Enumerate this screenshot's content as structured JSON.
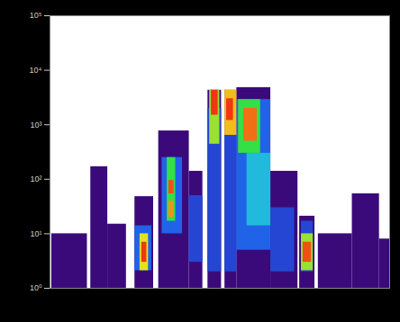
{
  "chart_data": {
    "type": "heatmap",
    "xlim": [
      0,
      100
    ],
    "ylim": [
      1,
      100000
    ],
    "yticks": [
      {
        "value": 1,
        "label": "10⁰"
      },
      {
        "value": 10,
        "label": "10¹"
      },
      {
        "value": 100,
        "label": "10²"
      },
      {
        "value": 1000,
        "label": "10³"
      },
      {
        "value": 10000,
        "label": "10⁴"
      },
      {
        "value": 100000,
        "label": "10⁵"
      }
    ],
    "log": "y",
    "tick_labels": "y",
    "cells": [
      {
        "x0": 0.5,
        "x1": 11,
        "y0": 1,
        "y1": 10,
        "count": 1
      },
      {
        "x0": 12,
        "x1": 17,
        "y0": 1,
        "y1": 170,
        "count": 1
      },
      {
        "x0": 17,
        "x1": 22.5,
        "y0": 1,
        "y1": 15,
        "count": 1
      },
      {
        "x0": 25,
        "x1": 30.5,
        "y0": 1,
        "y1": 48,
        "count": 1
      },
      {
        "x0": 32,
        "x1": 41,
        "y0": 1,
        "y1": 770,
        "count": 1
      },
      {
        "x0": 41,
        "x1": 45,
        "y0": 1,
        "y1": 140,
        "count": 1
      },
      {
        "x0": 46.5,
        "x1": 50.5,
        "y0": 1,
        "y1": 4300,
        "count": 1
      },
      {
        "x0": 51.5,
        "x1": 55,
        "y0": 1,
        "y1": 4300,
        "count": 1
      },
      {
        "x0": 55,
        "x1": 65,
        "y0": 1,
        "y1": 4800,
        "count": 1
      },
      {
        "x0": 65,
        "x1": 73,
        "y0": 1,
        "y1": 140,
        "count": 1
      },
      {
        "x0": 73.5,
        "x1": 78,
        "y0": 1,
        "y1": 21,
        "count": 1
      },
      {
        "x0": 79,
        "x1": 89,
        "y0": 1,
        "y1": 10,
        "count": 1
      },
      {
        "x0": 89,
        "x1": 97,
        "y0": 1,
        "y1": 54,
        "count": 1
      },
      {
        "x0": 97,
        "x1": 100,
        "y0": 1,
        "y1": 8,
        "count": 1
      },
      {
        "x0": 25,
        "x1": 30,
        "y0": 2.1,
        "y1": 14,
        "count": 4
      },
      {
        "x0": 33,
        "x1": 39,
        "y0": 10,
        "y1": 250,
        "count": 4
      },
      {
        "x0": 41,
        "x1": 45,
        "y0": 3,
        "y1": 50,
        "count": 3
      },
      {
        "x0": 46.5,
        "x1": 50.5,
        "y0": 2,
        "y1": 2000,
        "count": 3
      },
      {
        "x0": 51.5,
        "x1": 55,
        "y0": 2,
        "y1": 2000,
        "count": 3
      },
      {
        "x0": 55,
        "x1": 65,
        "y0": 5,
        "y1": 2900,
        "count": 4
      },
      {
        "x0": 65,
        "x1": 72,
        "y0": 2,
        "y1": 30,
        "count": 3
      },
      {
        "x0": 74,
        "x1": 77.5,
        "y0": 2,
        "y1": 17,
        "count": 3
      },
      {
        "x0": 26.5,
        "x1": 29,
        "y0": 2.1,
        "y1": 10,
        "count": 40
      },
      {
        "x0": 27,
        "x1": 28.5,
        "y0": 3,
        "y1": 7,
        "count": 90
      },
      {
        "x0": 34.5,
        "x1": 37,
        "y0": 17,
        "y1": 250,
        "count": 20
      },
      {
        "x0": 35,
        "x1": 36.5,
        "y0": 54,
        "y1": 95,
        "count": 80
      },
      {
        "x0": 35,
        "x1": 36.5,
        "y0": 20,
        "y1": 40,
        "count": 60
      },
      {
        "x0": 47,
        "x1": 50,
        "y0": 440,
        "y1": 4300,
        "count": 30
      },
      {
        "x0": 47.5,
        "x1": 49.5,
        "y0": 1500,
        "y1": 4300,
        "count": 90
      },
      {
        "x0": 51.5,
        "x1": 55,
        "y0": 640,
        "y1": 4300,
        "count": 50
      },
      {
        "x0": 52,
        "x1": 54,
        "y0": 1200,
        "y1": 3000,
        "count": 90
      },
      {
        "x0": 58,
        "x1": 65,
        "y0": 14,
        "y1": 300,
        "count": 8
      },
      {
        "x0": 55.5,
        "x1": 62,
        "y0": 300,
        "y1": 2900,
        "count": 20
      },
      {
        "x0": 57,
        "x1": 61,
        "y0": 500,
        "y1": 2000,
        "count": 70
      },
      {
        "x0": 74,
        "x1": 77.5,
        "y0": 2.1,
        "y1": 10,
        "count": 30
      },
      {
        "x0": 74.5,
        "x1": 77,
        "y0": 3,
        "y1": 7,
        "count": 80
      }
    ]
  }
}
